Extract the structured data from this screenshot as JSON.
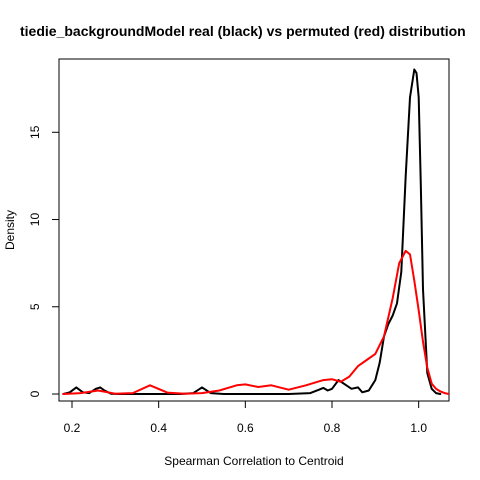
{
  "chart_data": {
    "type": "line",
    "title": "tiedie_backgroundModel  real (black) vs permuted (red) distribution",
    "xlabel": "Spearman Correlation to Centroid",
    "ylabel": "Density",
    "xlim": [
      0.17,
      1.07
    ],
    "ylim": [
      -0.4,
      19.2
    ],
    "x_ticks": [
      0.2,
      0.4,
      0.6,
      0.8,
      1.0
    ],
    "x_tick_labels": [
      "0.2",
      "0.4",
      "0.6",
      "0.8",
      "1.0"
    ],
    "y_ticks": [
      0,
      5,
      10,
      15
    ],
    "y_tick_labels": [
      "0",
      "5",
      "10",
      "15"
    ],
    "grid": false,
    "series": [
      {
        "color": "#000000",
        "x": [
          0.18,
          0.195,
          0.21,
          0.225,
          0.24,
          0.255,
          0.265,
          0.275,
          0.29,
          0.31,
          0.35,
          0.4,
          0.45,
          0.48,
          0.5,
          0.52,
          0.55,
          0.6,
          0.65,
          0.7,
          0.75,
          0.77,
          0.78,
          0.79,
          0.8,
          0.815,
          0.83,
          0.845,
          0.86,
          0.87,
          0.885,
          0.9,
          0.91,
          0.92,
          0.93,
          0.94,
          0.95,
          0.96,
          0.97,
          0.98,
          0.99,
          0.995,
          1.0,
          1.005,
          1.01,
          1.02,
          1.03,
          1.04,
          1.05
        ],
        "y": [
          0.0,
          0.1,
          0.38,
          0.1,
          0.05,
          0.3,
          0.38,
          0.2,
          0.02,
          0.0,
          0.0,
          0.0,
          0.0,
          0.05,
          0.38,
          0.05,
          0.0,
          0.0,
          0.0,
          0.0,
          0.05,
          0.25,
          0.35,
          0.2,
          0.3,
          0.8,
          0.55,
          0.3,
          0.38,
          0.1,
          0.2,
          0.8,
          1.8,
          3.3,
          4.0,
          4.5,
          5.2,
          7.0,
          12.5,
          17.0,
          18.6,
          18.4,
          17.0,
          12.0,
          6.0,
          1.2,
          0.3,
          0.05,
          0.0
        ]
      },
      {
        "color": "#ff0000",
        "x": [
          0.18,
          0.22,
          0.26,
          0.3,
          0.34,
          0.38,
          0.42,
          0.46,
          0.5,
          0.54,
          0.58,
          0.6,
          0.63,
          0.66,
          0.7,
          0.74,
          0.78,
          0.8,
          0.82,
          0.84,
          0.86,
          0.88,
          0.9,
          0.92,
          0.94,
          0.955,
          0.97,
          0.98,
          0.99,
          1.0,
          1.01,
          1.02,
          1.03,
          1.04,
          1.05,
          1.06,
          1.07
        ],
        "y": [
          0.0,
          0.05,
          0.2,
          0.02,
          0.05,
          0.5,
          0.08,
          0.02,
          0.05,
          0.2,
          0.5,
          0.55,
          0.4,
          0.5,
          0.25,
          0.5,
          0.8,
          0.85,
          0.7,
          1.0,
          1.6,
          1.95,
          2.3,
          3.3,
          5.5,
          7.5,
          8.2,
          8.0,
          6.5,
          4.8,
          3.0,
          1.5,
          0.6,
          0.3,
          0.15,
          0.05,
          0.0
        ]
      }
    ]
  }
}
